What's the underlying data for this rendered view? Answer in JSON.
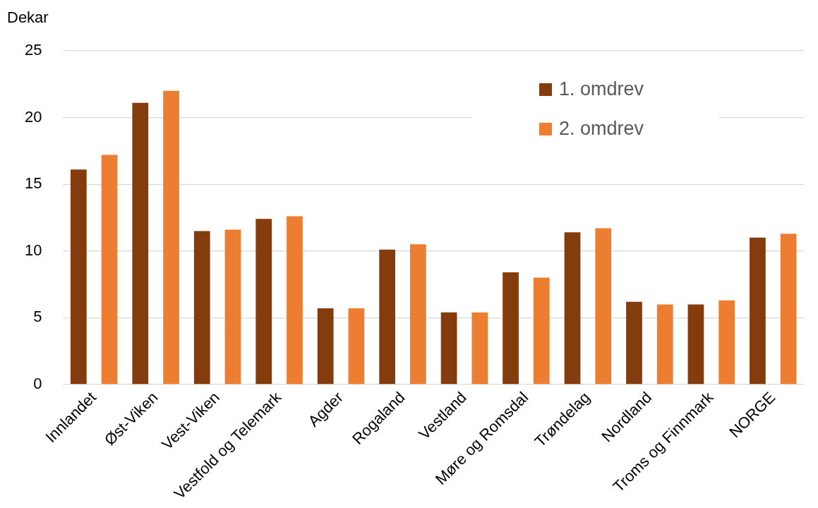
{
  "chart_data": {
    "type": "bar",
    "ylabel": "Dekar",
    "categories": [
      "Innlandet",
      "Øst-Viken",
      "Vest-Viken",
      "Vestfold og Telemark",
      "Agder",
      "Rogaland",
      "Vestland",
      "Møre og Romsdal",
      "Trøndelag",
      "Nordland",
      "Troms og Finnmark",
      "NORGE"
    ],
    "series": [
      {
        "name": "1. omdrev",
        "color": "#843c0c",
        "values": [
          16.1,
          21.1,
          11.5,
          12.4,
          5.7,
          10.1,
          5.4,
          8.4,
          11.4,
          6.2,
          6.0,
          11.0
        ]
      },
      {
        "name": "2. omdrev",
        "color": "#ed7d31",
        "values": [
          17.2,
          22.0,
          11.6,
          12.6,
          5.7,
          10.5,
          5.4,
          8.0,
          11.7,
          6.0,
          6.3,
          11.3
        ]
      }
    ],
    "ylim": [
      0,
      25
    ],
    "yticks": [
      0,
      5,
      10,
      15,
      20,
      25
    ],
    "grid": "y",
    "legend": "top right"
  }
}
